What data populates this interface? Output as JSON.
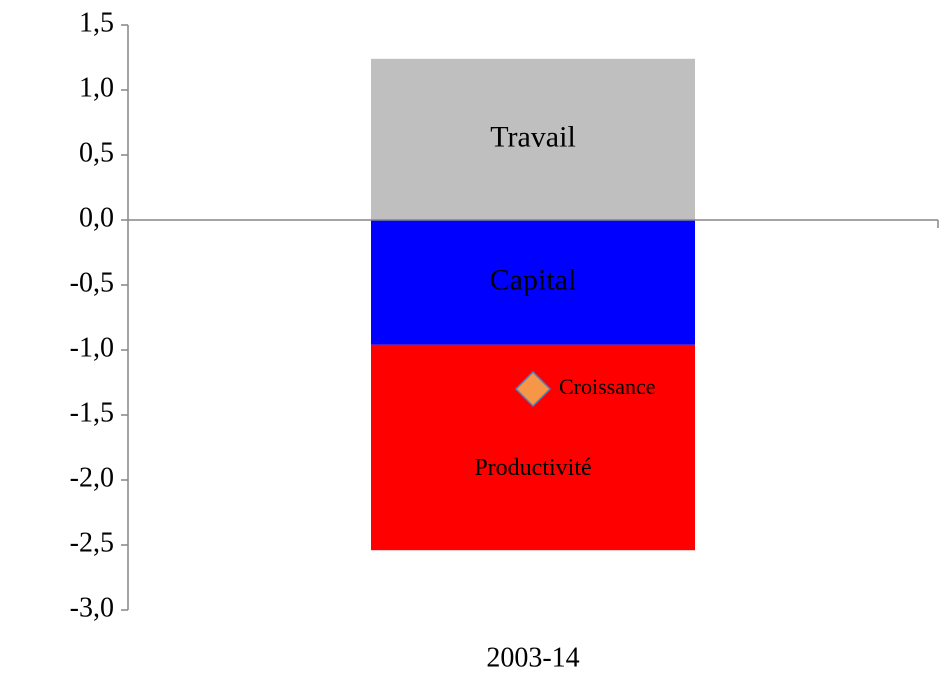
{
  "chart_data": {
    "type": "bar",
    "stacked": true,
    "categories": [
      "2003-14"
    ],
    "series": [
      {
        "name": "Travail",
        "color": "#bfbfbf",
        "label_color": "#000000",
        "values": [
          1.24
        ]
      },
      {
        "name": "Capital",
        "color": "#0000ff",
        "label_color": "#ffffff",
        "values": [
          -0.96
        ]
      },
      {
        "name": "Productivité",
        "color": "#ff0000",
        "label_color": "#ffffff",
        "values": [
          -1.58
        ]
      },
      {
        "name": "Croissance",
        "type": "scatter",
        "color": "#f79646",
        "label_color": "#000000",
        "values": [
          -1.3
        ]
      }
    ],
    "ylim": [
      -3.0,
      1.5
    ],
    "yticks": [
      {
        "value": -3.0,
        "label": "-3,0"
      },
      {
        "value": -2.5,
        "label": "-2,5"
      },
      {
        "value": -2.0,
        "label": "-2,0"
      },
      {
        "value": -1.5,
        "label": "-1,5"
      },
      {
        "value": -1.0,
        "label": "-1,0"
      },
      {
        "value": -0.5,
        "label": "-0,5"
      },
      {
        "value": 0.0,
        "label": "0,0"
      },
      {
        "value": 0.5,
        "label": "0,5"
      },
      {
        "value": 1.0,
        "label": "1,0"
      },
      {
        "value": 1.5,
        "label": "1,5"
      }
    ],
    "grid": false
  }
}
